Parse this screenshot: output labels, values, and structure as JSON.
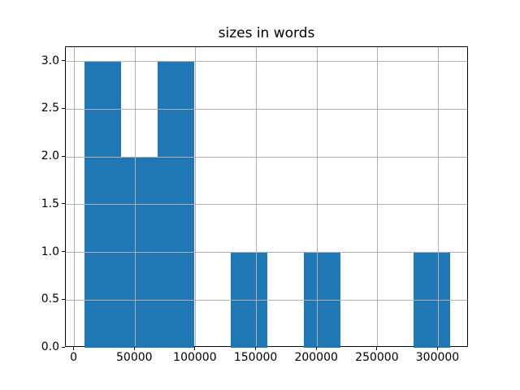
{
  "chart_data": {
    "type": "histogram",
    "title": "sizes in words",
    "xlabel": "",
    "ylabel": "",
    "bin_edges": [
      8000,
      38200,
      68400,
      98600,
      128800,
      159000,
      189200,
      219400,
      249600,
      279800,
      310000
    ],
    "counts": [
      3,
      2,
      3,
      0,
      1,
      0,
      1,
      0,
      0,
      1
    ],
    "xlim": [
      -7100,
      325100
    ],
    "ylim": [
      0,
      3.15
    ],
    "xticks": [
      {
        "value": 0,
        "label": "0"
      },
      {
        "value": 50000,
        "label": "50000"
      },
      {
        "value": 100000,
        "label": "100000"
      },
      {
        "value": 150000,
        "label": "150000"
      },
      {
        "value": 200000,
        "label": "200000"
      },
      {
        "value": 250000,
        "label": "250000"
      },
      {
        "value": 300000,
        "label": "300000"
      }
    ],
    "yticks": [
      {
        "value": 0.0,
        "label": "0.0"
      },
      {
        "value": 0.5,
        "label": "0.5"
      },
      {
        "value": 1.0,
        "label": "1.0"
      },
      {
        "value": 1.5,
        "label": "1.5"
      },
      {
        "value": 2.0,
        "label": "2.0"
      },
      {
        "value": 2.5,
        "label": "2.5"
      },
      {
        "value": 3.0,
        "label": "3.0"
      }
    ],
    "grid": true,
    "grid_above_bars": true,
    "legend_visible": false,
    "bar_color": "#1f77b4",
    "grid_color": "#b0b0b0",
    "spine_color": "#000000",
    "tick_color": "#000000",
    "text_color": "#000000",
    "background_color": "#ffffff"
  }
}
